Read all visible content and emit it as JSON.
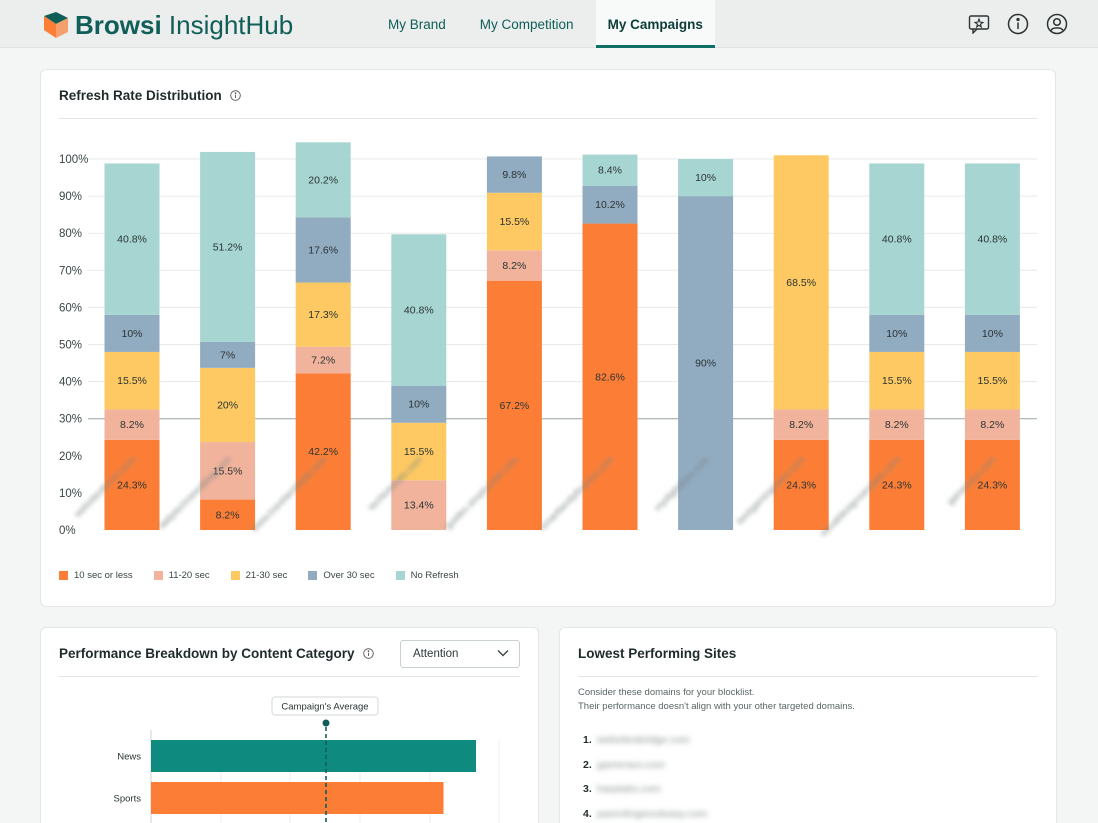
{
  "header": {
    "brand_bold": "Browsi",
    "brand_light": "InsightHub",
    "tabs": [
      {
        "label": "My Brand",
        "active": false
      },
      {
        "label": "My Competition",
        "active": false
      },
      {
        "label": "My Campaigns",
        "active": true
      }
    ],
    "icons": [
      "feedback-chat-icon",
      "info-icon",
      "user-account-icon"
    ]
  },
  "refresh_card": {
    "title": "Refresh Rate Distribution",
    "legend": [
      {
        "label": "10 sec or less",
        "color": "#fc7e36"
      },
      {
        "label": "11-20 sec",
        "color": "#f1b39b"
      },
      {
        "label": "21-30 sec",
        "color": "#fec962"
      },
      {
        "label": "Over 30 sec",
        "color": "#91abc1"
      },
      {
        "label": "No Refresh",
        "color": "#a7d5d2"
      }
    ]
  },
  "chart_data": {
    "type": "bar",
    "stacked": true,
    "y_ticks": [
      "100%",
      "90%",
      "80%",
      "70%",
      "60%",
      "50%",
      "40%",
      "30%",
      "20%",
      "10%",
      "0%"
    ],
    "ylim": [
      0,
      100
    ],
    "grid": true,
    "legend_position": "bottom-left",
    "categories": [
      "websitesforum.com",
      "dailytechnewsblog.com",
      "www.travelandstyle.com",
      "techtutorials.com",
      "guides.simplycook.com",
      "smartfamilyfinance.com",
      "mydigitaltips.com",
      "bestgamingnews.com",
      "visualdesignsandarts.com",
      "gameworx.com"
    ],
    "series": [
      {
        "name": "10 sec or less",
        "values": [
          24.3,
          8.2,
          42.2,
          0,
          67.2,
          82.6,
          0,
          24.3,
          24.3,
          24.3
        ]
      },
      {
        "name": "11-20 sec",
        "values": [
          8.2,
          15.5,
          7.2,
          13.4,
          8.2,
          0,
          0,
          8.2,
          8.2,
          8.2
        ]
      },
      {
        "name": "21-30 sec",
        "values": [
          15.5,
          20,
          17.3,
          15.5,
          15.5,
          0,
          0,
          68.5,
          15.5,
          15.5
        ]
      },
      {
        "name": "Over 30 sec",
        "values": [
          10,
          7,
          17.6,
          10,
          9.8,
          10.2,
          90,
          0,
          10,
          10
        ]
      },
      {
        "name": "No Refresh",
        "values": [
          40.8,
          51.2,
          20.2,
          40.8,
          0,
          8.4,
          10,
          0,
          40.8,
          40.8
        ]
      }
    ],
    "data_labels": [
      [
        "24.3%",
        "8.2%",
        "15.5%",
        "10%",
        "40.8%"
      ],
      [
        "8.2%",
        "15.5%",
        "20%",
        "7%",
        "51.2%"
      ],
      [
        "42.2%",
        "7.2%",
        "17.3%",
        "17.6%",
        "20.2%"
      ],
      [
        "",
        "13.4%",
        "15.5%",
        "10%",
        "40.8%"
      ],
      [
        "67.2%",
        "8.2%",
        "15.5%",
        "9.8%",
        ""
      ],
      [
        "82.6%",
        "",
        "",
        "10.2%",
        "8.4%"
      ],
      [
        "",
        "",
        "",
        "90%",
        "10%"
      ],
      [
        "24.3%",
        "8.2%",
        "68.5%",
        "",
        ""
      ],
      [
        "24.3%",
        "8.2%",
        "15.5%",
        "10%",
        "40.8%"
      ],
      [
        "24.3%",
        "8.2%",
        "15.5%",
        "10%",
        "40.8%"
      ]
    ]
  },
  "performance_card": {
    "title": "Performance Breakdown by Content Category",
    "dropdown_value": "Attention",
    "average_label": "Campaign's Average",
    "bars": [
      {
        "label": "News",
        "value": 1.0,
        "color": "#0e8a7f"
      },
      {
        "label": "Sports",
        "value": 0.9,
        "color": "#fc7e36"
      }
    ]
  },
  "lowest_card": {
    "title": "Lowest Performing Sites",
    "description_line1": "Consider these domains for your blocklist.",
    "description_line2": "Their performance doesn't align with your other targeted domains.",
    "sites": [
      {
        "num": "1.",
        "domain": "websitesbridge.com"
      },
      {
        "num": "2.",
        "domain": "gameravv.com"
      },
      {
        "num": "3.",
        "domain": "harptabs.com"
      },
      {
        "num": "4.",
        "domain": "parentingisnoteasy.com"
      }
    ]
  }
}
